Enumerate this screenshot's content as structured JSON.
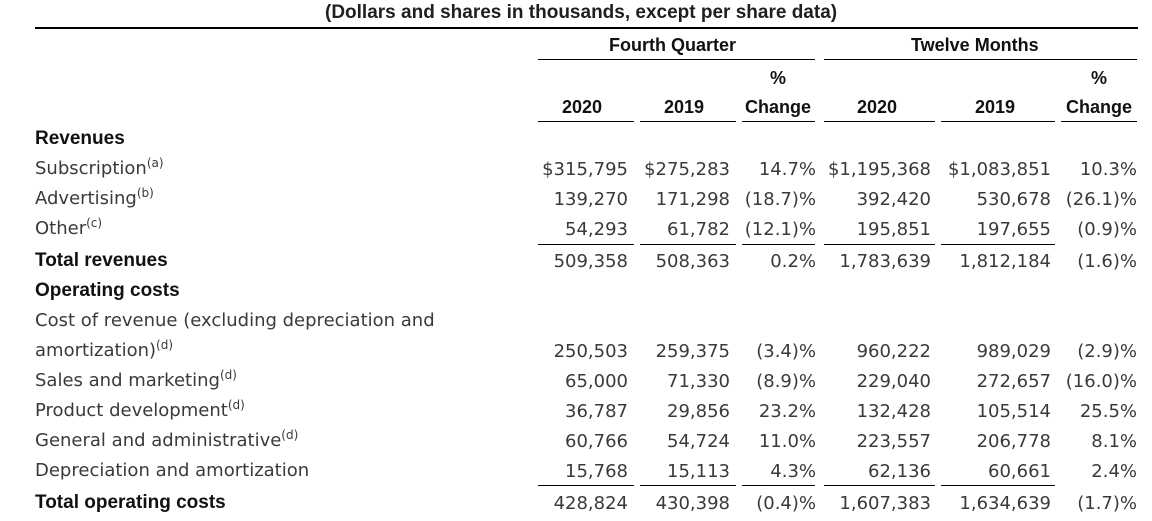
{
  "caption": "(Dollars and shares in thousands, except per share data)",
  "headers": {
    "fourth_quarter": "Fourth Quarter",
    "twelve_months": "Twelve Months",
    "pct": "%",
    "change": "Change",
    "y2020": "2020",
    "y2019": "2019"
  },
  "rows": [
    {
      "label": "Revenues",
      "bold": true
    },
    {
      "label": "Subscription",
      "sup": "(a)",
      "v": [
        "$315,795",
        "$275,283",
        "14.7%",
        "$1,195,368",
        "$1,083,851",
        "10.3%"
      ]
    },
    {
      "label": "Advertising",
      "sup": "(b)",
      "v": [
        "139,270",
        "171,298",
        "(18.7)%",
        "392,420",
        "530,678",
        "(26.1)%"
      ]
    },
    {
      "label": "Other",
      "sup": "(c)",
      "v": [
        "54,293",
        "61,782",
        "(12.1)%",
        "195,851",
        "197,655",
        "(0.9)%"
      ]
    },
    {
      "label": "Total revenues",
      "bold": true,
      "v": [
        "509,358",
        "508,363",
        "0.2%",
        "1,783,639",
        "1,812,184",
        "(1.6)%"
      ]
    },
    {
      "label": "Operating costs",
      "bold": true
    },
    {
      "label": "Cost of revenue (excluding depreciation and"
    },
    {
      "label": "amortization)",
      "sup": "(d)",
      "v": [
        "250,503",
        "259,375",
        "(3.4)%",
        "960,222",
        "989,029",
        "(2.9)%"
      ]
    },
    {
      "label": "Sales and marketing",
      "sup": "(d)",
      "v": [
        "65,000",
        "71,330",
        "(8.9)%",
        "229,040",
        "272,657",
        "(16.0)%"
      ]
    },
    {
      "label": "Product development",
      "sup": "(d)",
      "v": [
        "36,787",
        "29,856",
        "23.2%",
        "132,428",
        "105,514",
        "25.5%"
      ]
    },
    {
      "label": "General and administrative",
      "sup": "(d)",
      "v": [
        "60,766",
        "54,724",
        "11.0%",
        "223,557",
        "206,778",
        "8.1%"
      ]
    },
    {
      "label": "Depreciation and amortization",
      "v": [
        "15,768",
        "15,113",
        "4.3%",
        "62,136",
        "60,661",
        "2.4%"
      ]
    },
    {
      "label": "Total operating costs",
      "bold": true,
      "v": [
        "428,824",
        "430,398",
        "(0.4)%",
        "1,607,383",
        "1,634,639",
        "(1.7)%"
      ]
    }
  ]
}
